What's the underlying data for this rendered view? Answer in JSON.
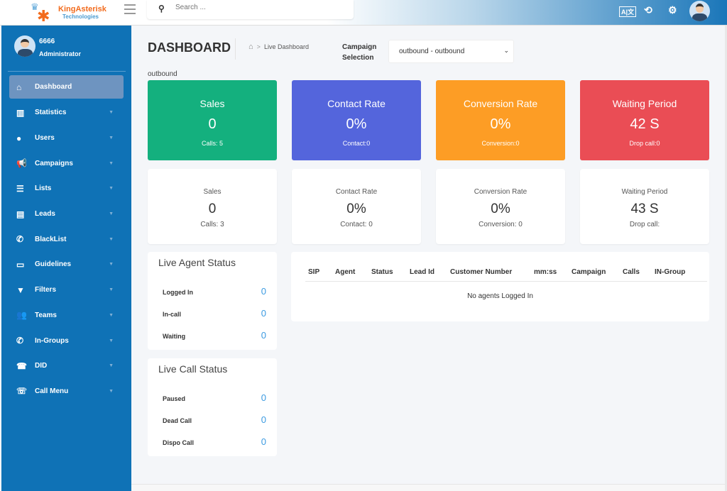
{
  "header": {
    "logo_name": "KingAsterisk",
    "logo_sub": "Technologies",
    "search_placeholder": "Search ...",
    "icons": [
      "language-icon",
      "history-icon",
      "settings-icon",
      "avatar"
    ]
  },
  "user": {
    "name": "6666",
    "role": "Administrator"
  },
  "sidebar": {
    "items": [
      {
        "label": "Dashboard",
        "icon": "home-icon",
        "active": true
      },
      {
        "label": "Statistics",
        "icon": "bar-chart-icon"
      },
      {
        "label": "Users",
        "icon": "user-icon"
      },
      {
        "label": "Campaigns",
        "icon": "megaphone-icon"
      },
      {
        "label": "Lists",
        "icon": "list-icon"
      },
      {
        "label": "Leads",
        "icon": "file-icon"
      },
      {
        "label": "BlackList",
        "icon": "blocked-phone-icon"
      },
      {
        "label": "Guidelines",
        "icon": "card-icon"
      },
      {
        "label": "Filters",
        "icon": "filter-icon"
      },
      {
        "label": "Teams",
        "icon": "users-icon"
      },
      {
        "label": "In-Groups",
        "icon": "phone-icon"
      },
      {
        "label": "DID",
        "icon": "did-icon"
      },
      {
        "label": "Call Menu",
        "icon": "call-menu-icon"
      }
    ]
  },
  "page": {
    "title": "DASHBOARD",
    "breadcrumb": "Live Dashboard",
    "campaign_label_1": "Campaign",
    "campaign_label_2": "Selection",
    "campaign_value": "outbound - outbound",
    "campaign_name": "outbound"
  },
  "colors": {
    "sales": "#14b07e",
    "contact": "#5465dc",
    "conversion": "#fd9d25",
    "waiting": "#ea4d55",
    "sidebar": "#0f72b6",
    "value": "#3b9ae1"
  },
  "cards": [
    {
      "title": "Sales",
      "value": "0",
      "sub": "Calls: 5"
    },
    {
      "title": "Contact Rate",
      "value": "0%",
      "sub": "Contact:0"
    },
    {
      "title": "Conversion Rate",
      "value": "0%",
      "sub": "Conversion:0"
    },
    {
      "title": "Waiting Period",
      "value": "42 S",
      "sub": "Drop call:0"
    }
  ],
  "white_cards": [
    {
      "title": "Sales",
      "value": "0",
      "sub": "Calls: 3"
    },
    {
      "title": "Contact Rate",
      "value": "0%",
      "sub": "Contact: 0"
    },
    {
      "title": "Conversion Rate",
      "value": "0%",
      "sub": "Conversion: 0"
    },
    {
      "title": "Waiting Period",
      "value": "43 S",
      "sub": "Drop call:"
    }
  ],
  "agent_status": {
    "title": "Live Agent Status",
    "rows": [
      {
        "label": "Logged In",
        "value": "0"
      },
      {
        "label": "In-call",
        "value": "0"
      },
      {
        "label": "Waiting",
        "value": "0"
      }
    ]
  },
  "call_status": {
    "title": "Live Call Status",
    "rows": [
      {
        "label": "Paused",
        "value": "0"
      },
      {
        "label": "Dead Call",
        "value": "0"
      },
      {
        "label": "Dispo Call",
        "value": "0"
      }
    ]
  },
  "agents_table": {
    "columns": [
      "SIP",
      "Agent",
      "Status",
      "Lead Id",
      "Customer Number",
      "mm:ss",
      "Campaign",
      "Calls",
      "IN-Group"
    ],
    "empty": "No agents Logged In"
  }
}
